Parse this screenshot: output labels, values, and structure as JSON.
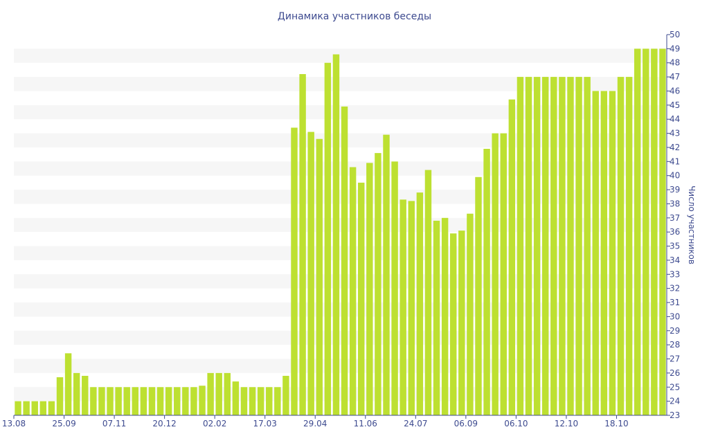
{
  "chart_data": {
    "type": "bar",
    "title": "Динамика участников беседы",
    "ylabel": "Число участников",
    "xlabel": "",
    "ylim": [
      23,
      50
    ],
    "y_axis_side": "right",
    "x_ticks": [
      {
        "index": 0,
        "label": "13.08"
      },
      {
        "index": 6,
        "label": "25.09"
      },
      {
        "index": 12,
        "label": "07.11"
      },
      {
        "index": 18,
        "label": "20.12"
      },
      {
        "index": 24,
        "label": "02.02"
      },
      {
        "index": 30,
        "label": "17.03"
      },
      {
        "index": 36,
        "label": "29.04"
      },
      {
        "index": 42,
        "label": "11.06"
      },
      {
        "index": 48,
        "label": "24.07"
      },
      {
        "index": 54,
        "label": "06.09"
      },
      {
        "index": 60,
        "label": "06.10"
      },
      {
        "index": 66,
        "label": "12.10"
      },
      {
        "index": 72,
        "label": "18.10"
      }
    ],
    "values": [
      24,
      24,
      24,
      24,
      24,
      25.7,
      27.4,
      26,
      25.8,
      25,
      25,
      25,
      25,
      25,
      25,
      25,
      25,
      25,
      25,
      25,
      25,
      25,
      25.1,
      26,
      26,
      26,
      25.4,
      25,
      25,
      25,
      25,
      25,
      25.8,
      43.4,
      47.2,
      43.1,
      42.6,
      48,
      48.6,
      44.9,
      40.6,
      39.5,
      40.9,
      41.6,
      42.9,
      41,
      38.3,
      38.2,
      38.8,
      40.4,
      36.8,
      37,
      35.9,
      36.1,
      37.3,
      39.9,
      41.9,
      43,
      43,
      45.4,
      47,
      47,
      47,
      47,
      47,
      47,
      47,
      47,
      47,
      46,
      46,
      46,
      47,
      47,
      49,
      49,
      49,
      49
    ],
    "colors": {
      "bar": "#bde031",
      "band": "#f6f6f6",
      "axis": "#3d4a8f",
      "text": "#3d4a8f"
    },
    "grid": "alternating horizontal bands",
    "legend": "none"
  }
}
